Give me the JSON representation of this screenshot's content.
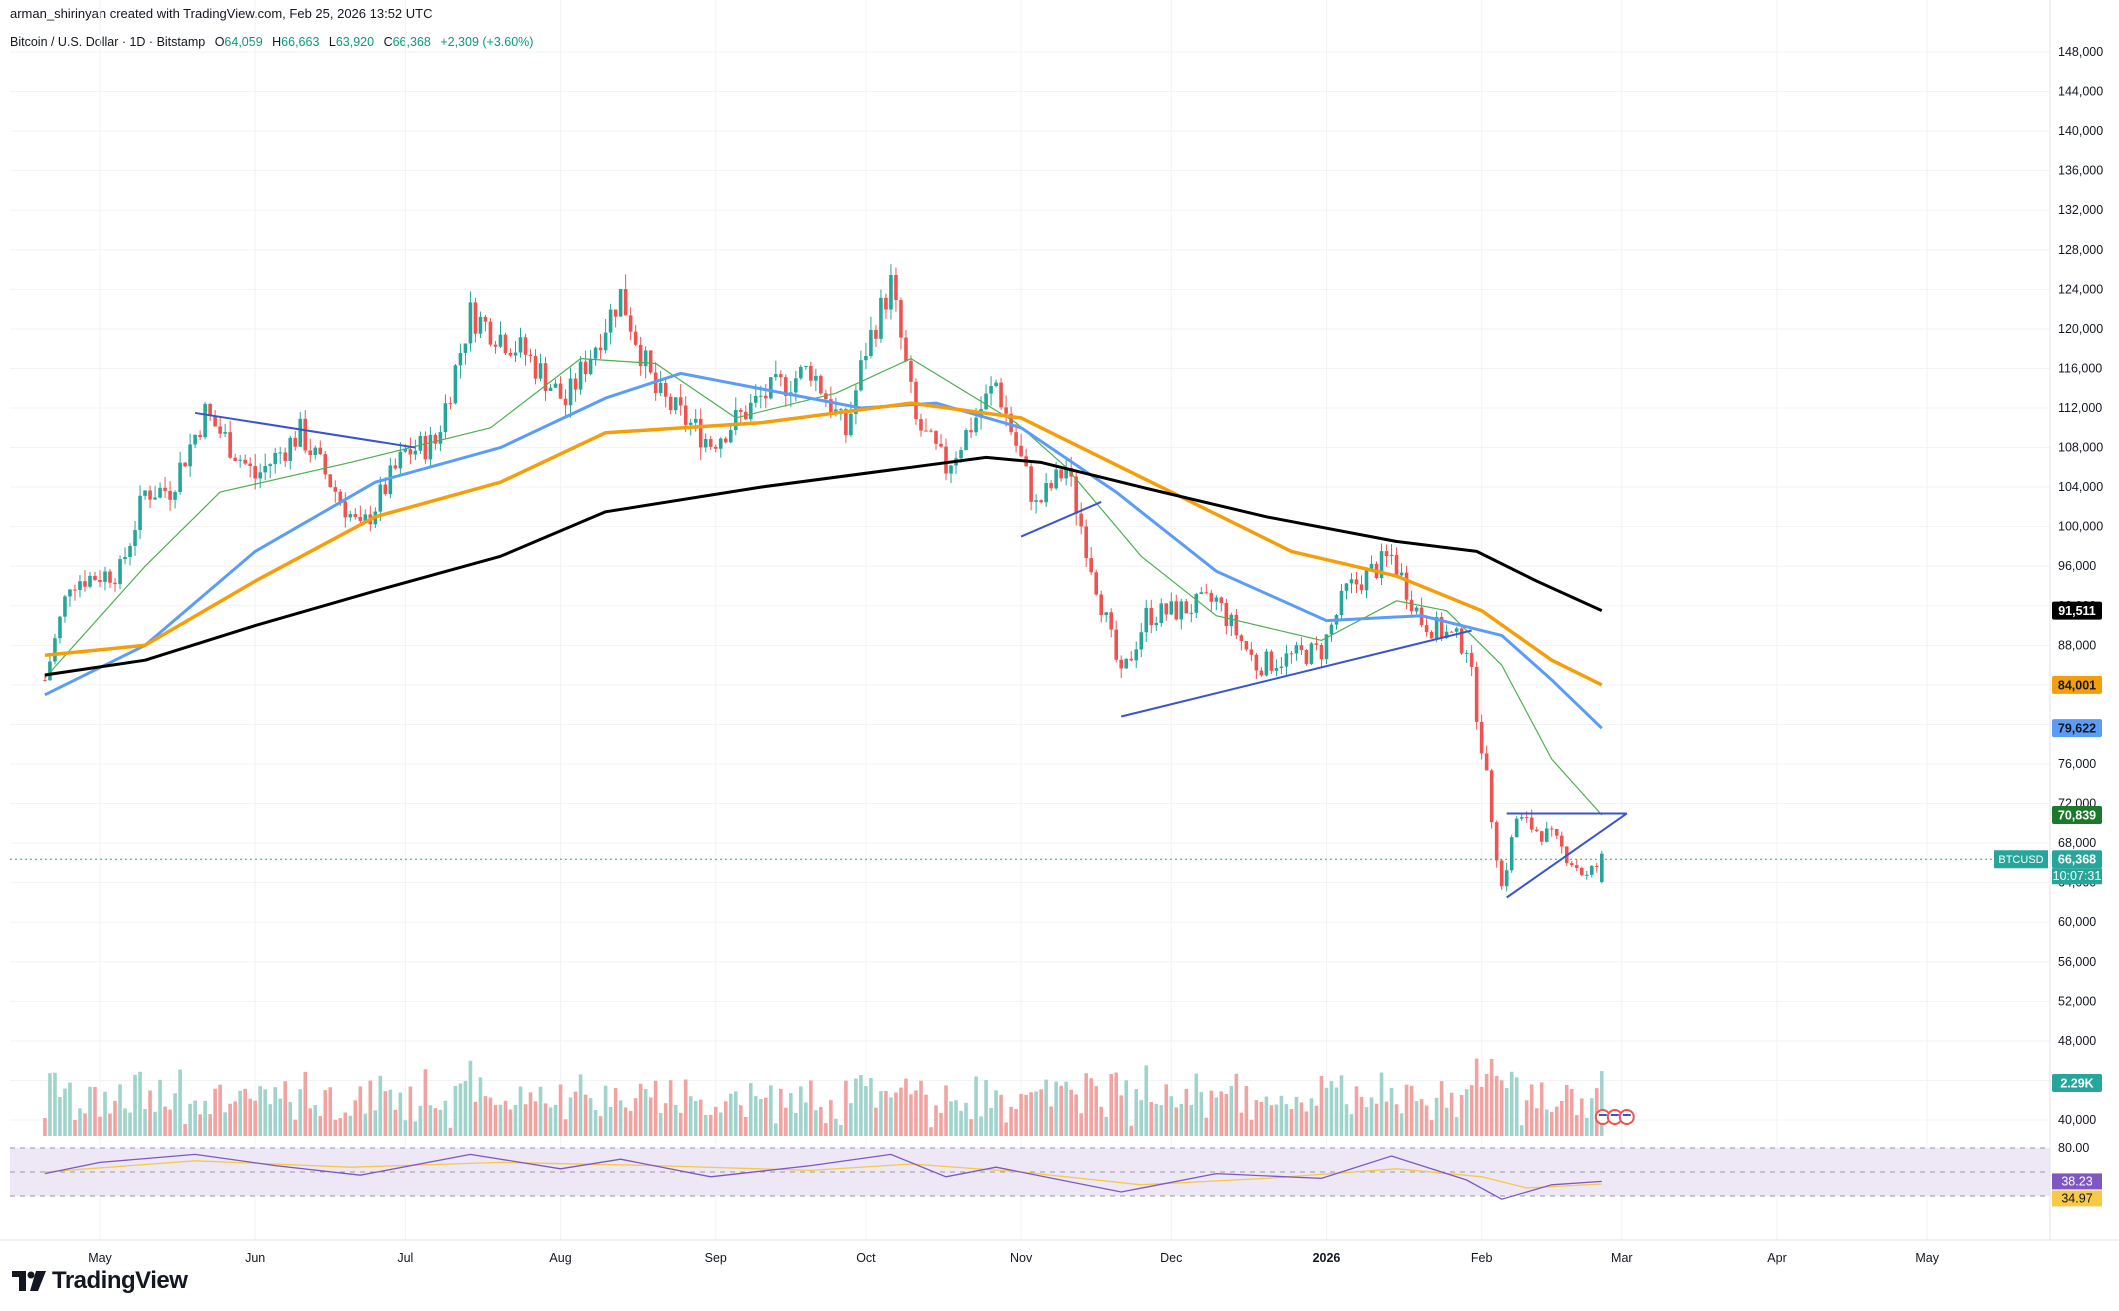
{
  "header": {
    "credit": "arman_shirinyan created with TradingView.com, Feb 25, 2026 13:52 UTC",
    "symbol": "Bitcoin / U.S. Dollar · 1D · Bitstamp",
    "open_label": "O",
    "open": "64,059",
    "high_label": "H",
    "high": "66,663",
    "low_label": "L",
    "low": "63,920",
    "close_label": "C",
    "close": "66,368",
    "change": "+2,309 (+3.60%)"
  },
  "logo": {
    "text": "TradingView",
    "icon": "tradingview-logo-icon"
  },
  "colors": {
    "up": "#26a69a",
    "down": "#ef5350",
    "vol_up": "#9fd3cc",
    "vol_down": "#f1a3a1",
    "sma20": "#4caf50",
    "sma50": "#5b9cf6",
    "sma100": "#f59e0b",
    "sma200": "#000000",
    "trendline": "#3a55cc",
    "rsi": "#7e57c2",
    "rsi_ma": "#f7c948",
    "rsi_band": "#ede7f6"
  },
  "chart_data": {
    "type": "candlestick",
    "title": "Bitcoin / U.S. Dollar · 1D · Bitstamp",
    "x_ticks": [
      "May",
      "Jun",
      "Jul",
      "Aug",
      "Sep",
      "Oct",
      "Nov",
      "Dec",
      "2026",
      "Feb",
      "Mar",
      "Apr",
      "May"
    ],
    "y_ticks": [
      "148,000",
      "144,000",
      "140,000",
      "136,000",
      "132,000",
      "128,000",
      "124,000",
      "120,000",
      "116,000",
      "112,000",
      "108,000",
      "104,000",
      "100,000",
      "96,000",
      "92,000",
      "88,000",
      "84,000",
      "80,000",
      "76,000",
      "72,000",
      "68,000",
      "64,000",
      "60,000",
      "56,000",
      "52,000",
      "48,000",
      "44,000",
      "40,000"
    ],
    "ylim": [
      40000,
      148000
    ],
    "last_close": 66368,
    "badges": [
      {
        "label": "91,511",
        "value": 91511,
        "series": "SMA 200"
      },
      {
        "label": "84,001",
        "value": 84001,
        "series": "SMA 100"
      },
      {
        "label": "79,622",
        "value": 79622,
        "series": "SMA 50"
      },
      {
        "label": "70,839",
        "value": 70839,
        "series": "SMA 20"
      },
      {
        "label": "66,368",
        "value": 66368,
        "series": "BTCUSD",
        "symbol": "BTCUSD",
        "countdown": "10:07:31"
      },
      {
        "label": "2.29K",
        "series": "Volume"
      }
    ],
    "price_path": [
      [
        "2025-04-20",
        84500
      ],
      [
        "2025-04-25",
        94500
      ],
      [
        "2025-05-05",
        95500
      ],
      [
        "2025-05-10",
        103500
      ],
      [
        "2025-05-15",
        103800
      ],
      [
        "2025-05-22",
        111500
      ],
      [
        "2025-06-01",
        105000
      ],
      [
        "2025-06-10",
        109500
      ],
      [
        "2025-06-22",
        99500
      ],
      [
        "2025-07-01",
        107500
      ],
      [
        "2025-07-07",
        108500
      ],
      [
        "2025-07-14",
        121500
      ],
      [
        "2025-07-25",
        117500
      ],
      [
        "2025-08-02",
        112500
      ],
      [
        "2025-08-13",
        123500
      ],
      [
        "2025-08-20",
        113500
      ],
      [
        "2025-08-31",
        108500
      ],
      [
        "2025-09-10",
        113000
      ],
      [
        "2025-09-20",
        116000
      ],
      [
        "2025-09-27",
        109500
      ],
      [
        "2025-10-01",
        118000
      ],
      [
        "2025-10-06",
        124500
      ],
      [
        "2025-10-11",
        110500
      ],
      [
        "2025-10-17",
        106000
      ],
      [
        "2025-10-27",
        114500
      ],
      [
        "2025-11-04",
        102000
      ],
      [
        "2025-11-10",
        106000
      ],
      [
        "2025-11-21",
        84500
      ],
      [
        "2025-11-26",
        91000
      ],
      [
        "2025-12-02",
        91500
      ],
      [
        "2025-12-10",
        92500
      ],
      [
        "2025-12-18",
        86000
      ],
      [
        "2025-12-31",
        87500
      ],
      [
        "2026-01-05",
        93500
      ],
      [
        "2026-01-14",
        97000
      ],
      [
        "2026-01-20",
        90500
      ],
      [
        "2026-01-29",
        88000
      ],
      [
        "2026-02-01",
        78000
      ],
      [
        "2026-02-05",
        63500
      ],
      [
        "2026-02-08",
        70500
      ],
      [
        "2026-02-15",
        68500
      ],
      [
        "2026-02-22",
        64500
      ],
      [
        "2026-02-25",
        66368
      ]
    ],
    "sma20": [
      [
        84700,
        "2025-04-20"
      ],
      [
        96000,
        "2025-05-10"
      ],
      [
        103500,
        "2025-05-25"
      ],
      [
        106500,
        "2025-06-20"
      ],
      [
        110000,
        "2025-07-18"
      ],
      [
        117000,
        "2025-08-05"
      ],
      [
        116500,
        "2025-08-20"
      ],
      [
        111000,
        "2025-09-05"
      ],
      [
        113500,
        "2025-09-25"
      ],
      [
        117000,
        "2025-10-10"
      ],
      [
        110500,
        "2025-10-31"
      ],
      [
        106000,
        "2025-11-10"
      ],
      [
        97000,
        "2025-11-25"
      ],
      [
        91000,
        "2025-12-10"
      ],
      [
        88500,
        "2025-12-31"
      ],
      [
        92500,
        "2026-01-15"
      ],
      [
        91500,
        "2026-01-25"
      ],
      [
        86000,
        "2026-02-05"
      ],
      [
        76500,
        "2026-02-15"
      ],
      [
        70839,
        "2026-02-25"
      ]
    ],
    "sma50": [
      [
        83000,
        "2025-04-20"
      ],
      [
        88000,
        "2025-05-10"
      ],
      [
        97500,
        "2025-06-01"
      ],
      [
        104500,
        "2025-06-25"
      ],
      [
        108000,
        "2025-07-20"
      ],
      [
        113000,
        "2025-08-10"
      ],
      [
        115500,
        "2025-08-25"
      ],
      [
        112000,
        "2025-09-30"
      ],
      [
        112500,
        "2025-10-15"
      ],
      [
        110000,
        "2025-11-01"
      ],
      [
        103500,
        "2025-11-20"
      ],
      [
        95500,
        "2025-12-10"
      ],
      [
        90500,
        "2026-01-01"
      ],
      [
        91000,
        "2026-01-20"
      ],
      [
        89000,
        "2026-02-05"
      ],
      [
        84500,
        "2026-02-15"
      ],
      [
        79622,
        "2026-02-25"
      ]
    ],
    "sma100": [
      [
        87000,
        "2025-04-20"
      ],
      [
        88000,
        "2025-05-10"
      ],
      [
        94500,
        "2025-06-01"
      ],
      [
        101000,
        "2025-06-25"
      ],
      [
        104500,
        "2025-07-20"
      ],
      [
        109500,
        "2025-08-10"
      ],
      [
        110500,
        "2025-09-10"
      ],
      [
        112500,
        "2025-10-10"
      ],
      [
        111000,
        "2025-11-01"
      ],
      [
        103500,
        "2025-12-01"
      ],
      [
        97500,
        "2025-12-25"
      ],
      [
        95000,
        "2026-01-15"
      ],
      [
        91500,
        "2026-02-01"
      ],
      [
        86500,
        "2026-02-15"
      ],
      [
        84001,
        "2026-02-25"
      ]
    ],
    "sma200": [
      [
        85000,
        "2025-04-20"
      ],
      [
        86500,
        "2025-05-10"
      ],
      [
        90000,
        "2025-06-01"
      ],
      [
        93500,
        "2025-06-25"
      ],
      [
        97000,
        "2025-07-20"
      ],
      [
        101500,
        "2025-08-10"
      ],
      [
        104000,
        "2025-09-10"
      ],
      [
        106000,
        "2025-10-10"
      ],
      [
        107000,
        "2025-10-25"
      ],
      [
        106500,
        "2025-11-05"
      ],
      [
        104000,
        "2025-11-25"
      ],
      [
        101000,
        "2025-12-20"
      ],
      [
        98500,
        "2026-01-15"
      ],
      [
        97500,
        "2026-01-31"
      ],
      [
        94500,
        "2026-02-12"
      ],
      [
        91511,
        "2026-02-25"
      ]
    ],
    "trendlines": [
      {
        "from": [
          "2025-05-20",
          111500
        ],
        "to": [
          "2025-07-03",
          108000
        ]
      },
      {
        "from": [
          "2025-11-01",
          99000
        ],
        "to": [
          "2025-11-17",
          102500
        ]
      },
      {
        "from": [
          "2025-11-21",
          80800
        ],
        "to": [
          "2026-01-30",
          89500
        ]
      },
      {
        "from": [
          "2026-02-06",
          71000
        ],
        "to": [
          "2026-03-02",
          71000
        ]
      },
      {
        "from": [
          "2026-02-06",
          62500
        ],
        "to": [
          "2026-03-02",
          71000
        ]
      }
    ],
    "volume_label": "2.29K",
    "rsi": {
      "ylim": [
        0,
        100
      ],
      "levels": [
        {
          "label": "80.00",
          "value": 80
        },
        {
          "label": "38.23",
          "value": 38.23
        },
        {
          "label": "34.97",
          "value": 34.97
        }
      ],
      "path": [
        [
          "2025-04-20",
          48
        ],
        [
          "2025-05-01",
          62
        ],
        [
          "2025-05-20",
          72
        ],
        [
          "2025-06-05",
          58
        ],
        [
          "2025-06-22",
          46
        ],
        [
          "2025-07-14",
          72
        ],
        [
          "2025-08-01",
          54
        ],
        [
          "2025-08-13",
          66
        ],
        [
          "2025-08-31",
          44
        ],
        [
          "2025-09-20",
          58
        ],
        [
          "2025-10-06",
          72
        ],
        [
          "2025-10-17",
          44
        ],
        [
          "2025-10-27",
          56
        ],
        [
          "2025-11-21",
          25
        ],
        [
          "2025-12-10",
          48
        ],
        [
          "2025-12-31",
          42
        ],
        [
          "2026-01-14",
          70
        ],
        [
          "2026-01-29",
          40
        ],
        [
          "2026-02-05",
          16
        ],
        [
          "2026-02-15",
          34
        ],
        [
          "2026-02-25",
          38.23
        ]
      ],
      "ma_path": [
        [
          "2025-04-20",
          50
        ],
        [
          "2025-05-20",
          64
        ],
        [
          "2025-06-20",
          56
        ],
        [
          "2025-07-20",
          62
        ],
        [
          "2025-08-20",
          58
        ],
        [
          "2025-09-20",
          52
        ],
        [
          "2025-10-10",
          60
        ],
        [
          "2025-11-01",
          50
        ],
        [
          "2025-11-25",
          34
        ],
        [
          "2025-12-20",
          42
        ],
        [
          "2026-01-15",
          54
        ],
        [
          "2026-02-01",
          44
        ],
        [
          "2026-02-10",
          30
        ],
        [
          "2026-02-25",
          34.97
        ]
      ]
    }
  }
}
